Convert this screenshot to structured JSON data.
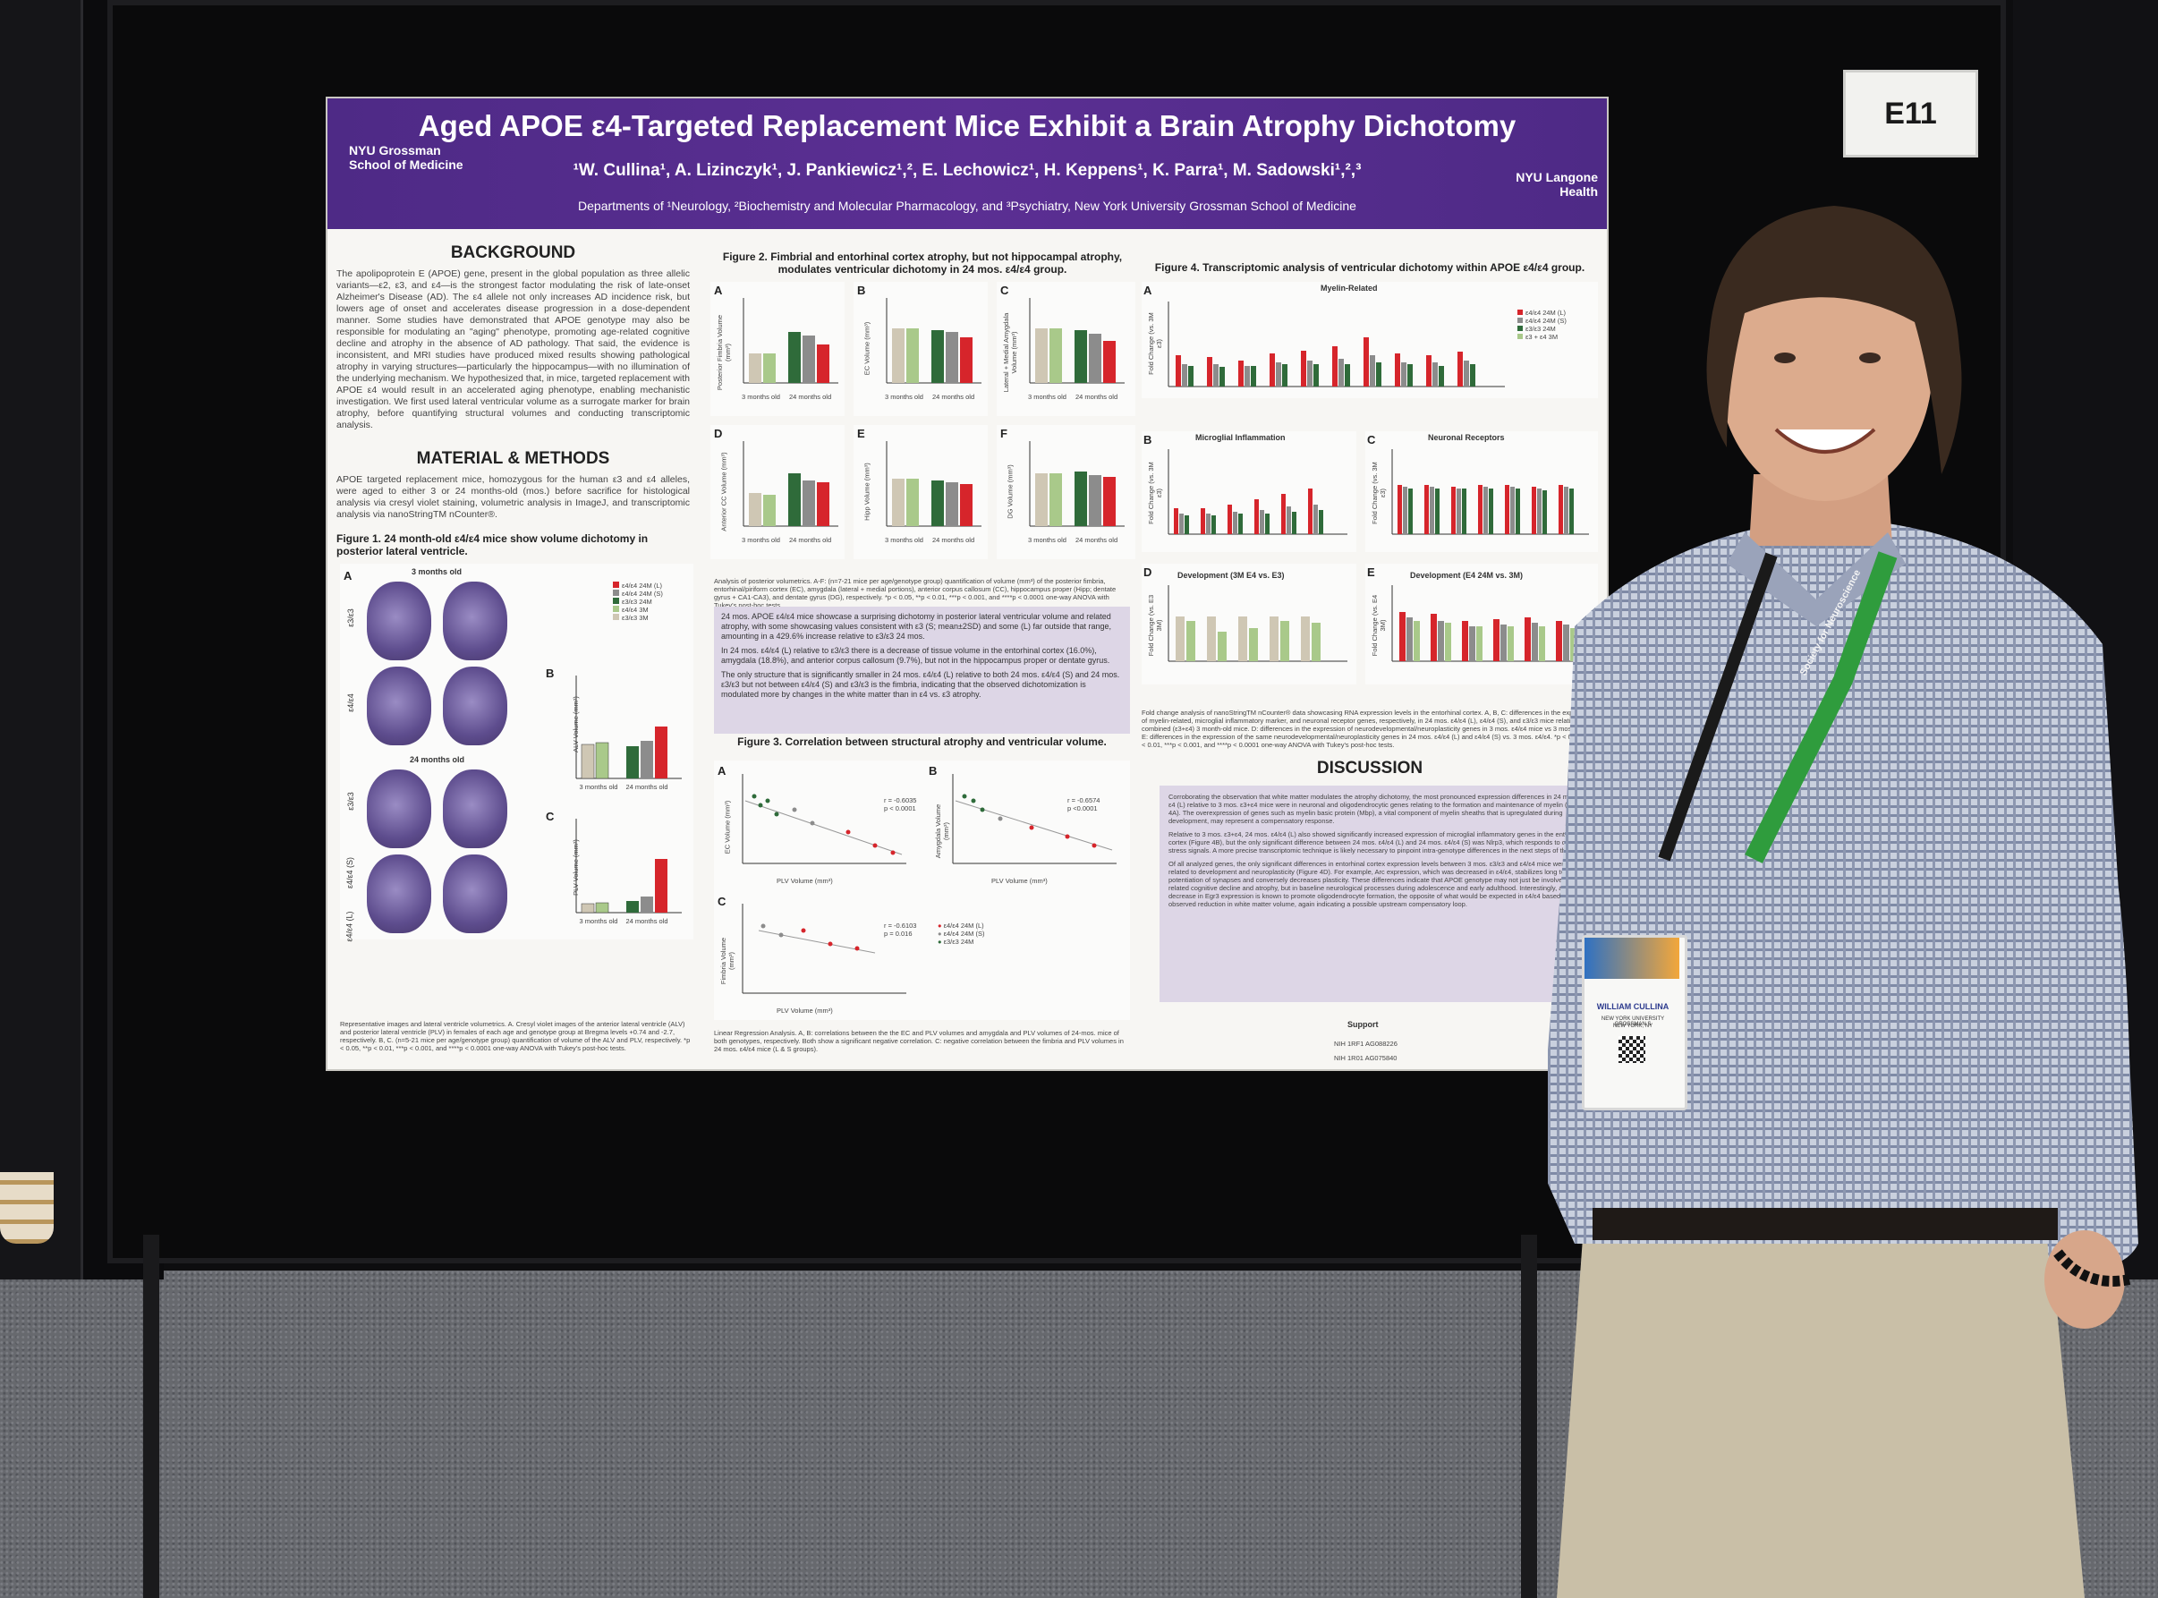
{
  "booth_label": "E11",
  "poster": {
    "title": "Aged APOE ε4-Targeted Replacement Mice Exhibit a Brain Atrophy Dichotomy",
    "authors": "¹W. Cullina¹, A. Lizinczyk¹, J. Pankiewicz¹,², E. Lechowicz¹, H. Keppens¹, K. Parra¹, M. Sadowski¹,²,³",
    "departments": "Departments of ¹Neurology, ²Biochemistry and Molecular Pharmacology, and ³Psychiatry, New York University Grossman School of Medicine",
    "logo_left": "NYU Grossman School of Medicine",
    "logo_right": "NYU Langone Health",
    "background_heading": "BACKGROUND",
    "background_text": "The apolipoprotein E (APOE) gene, present in the global population as three allelic variants—ε2, ε3, and ε4—is the strongest factor modulating the risk of late-onset Alzheimer's Disease (AD). The ε4 allele not only increases AD incidence risk, but lowers age of onset and accelerates disease progression in a dose-dependent manner. Some studies have demonstrated that APOE genotype may also be responsible for modulating an \"aging\" phenotype, promoting age-related cognitive decline and atrophy in the absence of AD pathology. That said, the evidence is inconsistent, and MRI studies have produced mixed results showing pathological atrophy in varying structures—particularly the hippocampus—with no illumination of the underlying mechanism. We hypothesized that, in mice, targeted replacement with APOE ε4 would result in an accelerated aging phenotype, enabling mechanistic investigation. We first used lateral ventricular volume as a surrogate marker for brain atrophy, before quantifying structural volumes and conducting transcriptomic analysis.",
    "methods_heading": "MATERIAL & METHODS",
    "methods_text": "APOE targeted replacement mice, homozygous for the human ε3 and ε4 alleles, were aged to either 3 or 24 months-old (mos.) before sacrifice for histological analysis via cresyl violet staining, volumetric analysis in ImageJ, and transcriptomic analysis via nanoStringTM nCounter®.",
    "fig1_title": "Figure 1. 24 month-old ε4/ε4 mice show volume dichotomy in posterior lateral ventricle.",
    "fig1_labels": {
      "a": "A",
      "b": "B",
      "c": "C",
      "group_3m": "3 months old",
      "group_24m": "24 months old",
      "row1": "ε3/ε3",
      "row2": "ε4/ε4",
      "row3": "ε3/ε3",
      "row4": "ε4/ε4 (S)",
      "row5": "ε4/ε4 (L)",
      "b_ylabel": "ALV Volume (mm³)",
      "c_ylabel": "PLV Volume (mm³)",
      "x1": "3 months old",
      "x2": "24 months old"
    },
    "fig1_legend": [
      "ε4/ε4 24M (L)",
      "ε4/ε4 24M (S)",
      "ε3/ε3 24M",
      "ε4/ε4 3M",
      "ε3/ε3 3M"
    ],
    "fig1_caption": "Representative images and lateral ventricle volumetrics. A. Cresyl violet images of the anterior lateral ventricle (ALV) and posterior lateral ventricle (PLV) in females of each age and genotype group at Bregma levels +0.74 and -2.7, respectively. B, C. (n=5-21 mice per age/genotype group) quantification of volume of the ALV and PLV, respectively. *p < 0.05, **p < 0.01, ***p < 0.001, and ****p < 0.0001 one-way ANOVA with Tukey's post-hoc tests.",
    "fig2_title": "Figure 2. Fimbrial and entorhinal cortex atrophy, but not hippocampal atrophy, modulates ventricular dichotomy in 24 mos. ε4/ε4 group.",
    "fig2_panels": [
      {
        "label": "A",
        "ylabel": "Posterior Fimbria Volume (mm³)"
      },
      {
        "label": "B",
        "ylabel": "EC Volume (mm³)"
      },
      {
        "label": "C",
        "ylabel": "Lateral + Medial Amygdala Volume (mm³)"
      },
      {
        "label": "D",
        "ylabel": "Anterior CC Volume (mm³)"
      },
      {
        "label": "E",
        "ylabel": "Hipp Volume (mm³)"
      },
      {
        "label": "F",
        "ylabel": "DG Volume (mm³)"
      }
    ],
    "fig2_xlabels": [
      "3 months old",
      "24 months old"
    ],
    "fig2_caption": "Analysis of posterior volumetrics. A-F: (n=7-21 mice per age/genotype group) quantification of volume (mm³) of the posterior fimbria, entorhinal/piriform cortex (EC), amygdala (lateral + medial portions), anterior corpus callosum (CC), hippocampus proper (Hipp; dentate gyrus + CA1-CA3), and dentate gyrus (DG), respectively. *p < 0.05, **p < 0.01, ***p < 0.001, and ****p < 0.0001 one-way ANOVA with Tukey's post-hoc tests.",
    "fig2_points": [
      "24 mos. APOE ε4/ε4 mice showcase a surprising dichotomy in posterior lateral ventricular volume and related atrophy, with some showcasing values consistent with ε3 (S; mean±2SD) and some (L) far outside that range, amounting in a 429.6% increase relative to ε3/ε3 24 mos.",
      "In 24 mos. ε4/ε4 (L) relative to ε3/ε3 there is a decrease of tissue volume in the entorhinal cortex (16.0%), amygdala (18.8%), and anterior corpus callosum (9.7%), but not in the hippocampus proper or dentate gyrus.",
      "The only structure that is significantly smaller in 24 mos. ε4/ε4 (L) relative to both 24 mos. ε4/ε4 (S) and 24 mos. ε3/ε3 but not between ε4/ε4 (S) and ε3/ε3 is the fimbria, indicating that the observed dichotomization is modulated more by changes in the white matter than in ε4 vs. ε3 atrophy."
    ],
    "fig3_title": "Figure 3. Correlation between structural atrophy and ventricular volume.",
    "fig3_panels": [
      {
        "label": "A",
        "ylabel": "EC Volume (mm³)",
        "xlabel": "PLV Volume (mm³)",
        "stats": "r = -0.6035\np < 0.0001"
      },
      {
        "label": "B",
        "ylabel": "Amygdala Volume (mm³)",
        "xlabel": "PLV Volume (mm³)",
        "stats": "r = -0.6574\np <0.0001"
      },
      {
        "label": "C",
        "ylabel": "Fimbria Volume (mm³)",
        "xlabel": "PLV Volume (mm³)",
        "stats": "r = -0.6103\np = 0.016"
      }
    ],
    "fig3_legend": [
      "ε4/ε4 24M (L)",
      "ε4/ε4 24M (S)",
      "ε3/ε3 24M"
    ],
    "fig3_caption": "Linear Regression Analysis. A, B: correlations between the the EC and PLV volumes and amygdala and PLV volumes of 24-mos. mice of both genotypes, respectively. Both show a significant negative correlation. C: negative correlation between the fimbria and PLV volumes in 24 mos. ε4/ε4 mice (L & S groups).",
    "fig4_title": "Figure 4. Transcriptomic analysis of ventricular dichotomy within APOE ε4/ε4 group.",
    "fig4_panels": [
      {
        "label": "A",
        "title": "Myelin-Related",
        "ylabel": "Fold Change (vs. 3M ε3)"
      },
      {
        "label": "B",
        "title": "Microglial Inflammation",
        "ylabel": "Fold Change (vs. 3M ε3)"
      },
      {
        "label": "C",
        "title": "Neuronal Receptors",
        "ylabel": "Fold Change (vs. 3M ε3)"
      },
      {
        "label": "D",
        "title": "Development (3M E4 vs. E3)",
        "ylabel": "Fold Change (vs. E3 3M)"
      },
      {
        "label": "E",
        "title": "Development (E4 24M vs. 3M)",
        "ylabel": "Fold Change (vs. E4 3M)"
      }
    ],
    "fig4_legend": [
      "ε4/ε4 24M (L)",
      "ε4/ε4 24M (S)",
      "ε3/ε3 24M",
      "ε3 + ε4 3M"
    ],
    "fig4_caption": "Fold change analysis of nanoStringTM nCounter® data showcasing RNA expression levels in the entorhinal cortex. A, B, C: differences in the expression of myelin-related, microglial inflammatory marker, and neuronal receptor genes, respectively, in 24 mos. ε4/ε4 (L), ε4/ε4 (S), and ε3/ε3 mice relative to combined (ε3+ε4) 3 month-old mice. D: differences in the expression of neurodevelopmental/neuroplasticity genes in 3 mos. ε4/ε4 mice vs 3 mos. ε3/ε3. E: differences in the expression of the same neurodevelopmental/neuroplasticity genes in 24 mos. ε4/ε4 (L) and ε4/ε4 (S) vs. 3 mos. ε4/ε4. *p < 0.05, **p < 0.01, ***p < 0.001, and ****p < 0.0001 one-way ANOVA with Tukey's post-hoc tests.",
    "discussion_heading": "DISCUSSION",
    "discussion_points": [
      "Corroborating the observation that white matter modulates the atrophy dichotomy, the most pronounced expression differences in 24 mos. ε4/ε4 (L) relative to 3 mos. ε3+ε4 mice were in neuronal and oligodendrocytic genes relating to the formation and maintenance of myelin (Figure 4A). The overexpression of genes such as myelin basic protein (Mbp), a vital component of myelin sheaths that is upregulated during development, may represent a compensatory response.",
      "Relative to 3 mos. ε3+ε4, 24 mos. ε4/ε4 (L) also showed significantly increased expression of microglial inflammatory genes in the entorhinal cortex (Figure 4B), but the only significant difference between 24 mos. ε4/ε4 (L) and 24 mos. ε4/ε4 (S) was Nlrp3, which responds to cellular stress signals. A more precise transcriptomic technique is likely necessary to pinpoint intra-genotype differences in the next steps of this work.",
      "Of all analyzed genes, the only significant differences in entorhinal cortex expression levels between 3 mos. ε3/ε3 and ε4/ε4 mice were those related to development and neuroplasticity (Figure 4D). For example, Arc expression, which was decreased in ε4/ε4, stabilizes long term potentiation of synapses and conversely decreases plasticity. These differences indicate that APOE genotype may not just be involved in age-related cognitive decline and atrophy, but in baseline neurological processes during adolescence and early adulthood. Interestingly, a decrease in Egr3 expression is known to promote oligodendrocyte formation, the opposite of what would be expected in ε4/ε4 based on the observed reduction in white matter volume, again indicating a possible upstream compensatory loop."
    ],
    "support_heading": "Support",
    "support_lines": [
      "NIH 1RF1 AG088226",
      "NIH 1R01 AG075840"
    ]
  },
  "badge": {
    "name": "WILLIAM CULLINA",
    "affiliation": "NEW YORK UNIVERSITY GROSSMAN S",
    "location": "NEW YORK, NY"
  },
  "lanyard_text": "Society for Neuroscience",
  "colors": {
    "banner_purple": "#5b2f93",
    "bar_red": "#d6252b",
    "bar_darkgreen": "#2f6b3a",
    "bar_gray": "#8c8c8c",
    "bar_lightgreen": "#a9c98a",
    "bar_beige": "#cfc7b4"
  }
}
